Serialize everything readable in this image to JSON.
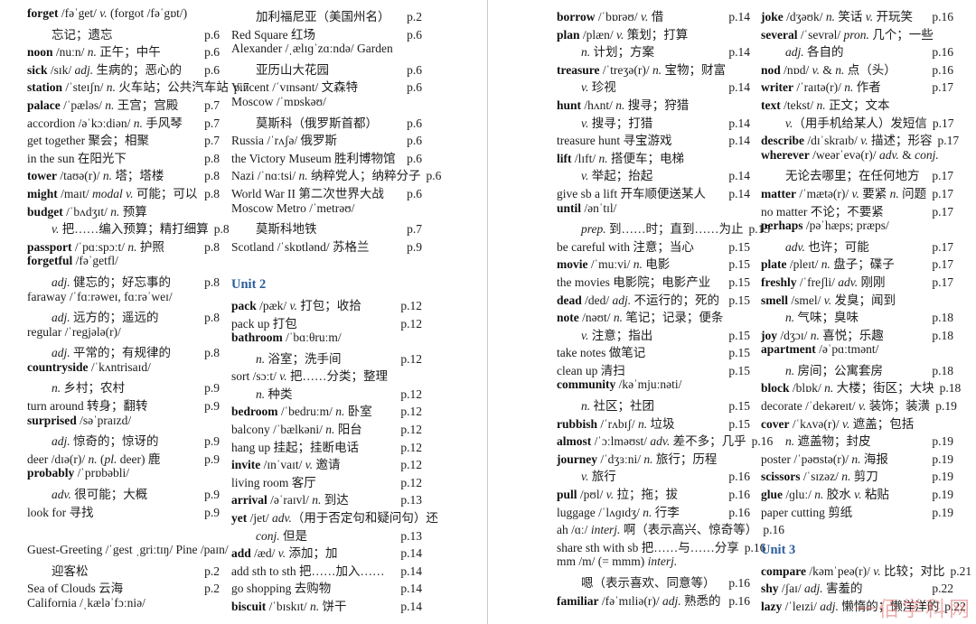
{
  "meta": {
    "bg_color": "#ffffff",
    "divider_color": "#c9c9c9",
    "unit_heading_color": "#2b5d9c",
    "text_color": "#1c1c1c",
    "watermark": {
      "text": "一佰学科网",
      "color": "#dd6e6e"
    }
  },
  "columns": [
    {
      "lines": [
        {
          "head": "forget",
          "text": "/fəˈget/ v. (forgot /fəˈgɒt/)"
        },
        {
          "text": "忘记；遗忘",
          "page": "p.6",
          "indent": true
        },
        {
          "head": "noon",
          "text": "/nuːn/ n. 正午；中午",
          "page": "p.6"
        },
        {
          "head": "sick",
          "text": "/sɪk/ adj. 生病的；恶心的",
          "page": "p.6"
        },
        {
          "head": "station",
          "text": "/ˈsteɪʃn/ n. 火车站；公共汽车站",
          "page": "p.7"
        },
        {
          "head": "palace",
          "text": "/ˈpæləs/ n. 王宫；宫殿",
          "page": "p.7"
        },
        {
          "text": "accordion /əˈkɔːdiən/ n. 手风琴",
          "page": "p.7"
        },
        {
          "text": "get together 聚会；相聚",
          "page": "p.7"
        },
        {
          "text": "in the sun 在阳光下",
          "page": "p.8"
        },
        {
          "head": "tower",
          "text": "/taʊə(r)/ n. 塔；塔楼",
          "page": "p.8"
        },
        {
          "head": "might",
          "text": "/maɪt/ modal v. 可能；可以",
          "page": "p.8"
        },
        {
          "head": "budget",
          "text": "/ˈbʌdʒɪt/ n. 预算"
        },
        {
          "text": "v. 把……编入预算；精打细算",
          "page": "p.8",
          "indent": true
        },
        {
          "head": "passport",
          "text": "/ˈpɑːspɔːt/ n. 护照",
          "page": "p.8"
        },
        {
          "head": "forgetful",
          "text": "/fəˈgetfl/"
        },
        {
          "text": "adj. 健忘的；好忘事的",
          "page": "p.8",
          "indent": true
        },
        {
          "text": "faraway /ˈfɑːrəweɪ, fɑːrəˈweɪ/"
        },
        {
          "text": "adj. 远方的；遥远的",
          "page": "p.8",
          "indent": true
        },
        {
          "text": "regular /ˈregjələ(r)/"
        },
        {
          "text": "adj. 平常的；有规律的",
          "page": "p.8",
          "indent": true
        },
        {
          "head": "countryside",
          "text": "/ˈkʌntrisaɪd/"
        },
        {
          "text": "n. 乡村；农村",
          "page": "p.9",
          "indent": true
        },
        {
          "text": "turn around 转身；翻转",
          "page": "p.9"
        },
        {
          "head": "surprised",
          "text": "/səˈpraɪzd/"
        },
        {
          "text": "adj. 惊奇的；惊讶的",
          "page": "p.9",
          "indent": true
        },
        {
          "text": "deer /dɪə(r)/ n. (pl. deer) 鹿",
          "page": "p.9"
        },
        {
          "head": "probably",
          "text": "/ˈprɒbəbli/"
        },
        {
          "text": "adv. 很可能；大概",
          "page": "p.9",
          "indent": true
        },
        {
          "text": "look for 寻找",
          "page": "p.9"
        },
        {
          "type": "gap"
        },
        {
          "text": "Guest-Greeting /ˈgest ˌgriːtɪŋ/ Pine /paɪn/"
        },
        {
          "text": "迎客松",
          "page": "p.2",
          "indent": true
        },
        {
          "text": "Sea of Clouds 云海",
          "page": "p.2"
        },
        {
          "text": "California /ˌkæləˈfɔːniə/"
        }
      ]
    },
    {
      "lines": [
        {
          "text": "加利福尼亚（美国州名）",
          "page": "p.2",
          "indent": true
        },
        {
          "text": "Red Square 红场",
          "page": "p.6"
        },
        {
          "text": "Alexander /ˌælɪɡˈzɑːndə/ Garden"
        },
        {
          "text": "亚历山大花园",
          "page": "p.6",
          "indent": true
        },
        {
          "text": "Vincent /ˈvɪnsənt/ 文森特",
          "page": "p.6"
        },
        {
          "text": "Moscow /ˈmɒskəʊ/"
        },
        {
          "text": "莫斯科（俄罗斯首都）",
          "page": "p.6",
          "indent": true
        },
        {
          "text": "Russia /ˈrʌʃə/ 俄罗斯",
          "page": "p.6"
        },
        {
          "text": "the Victory Museum 胜利博物馆",
          "page": "p.6"
        },
        {
          "text": "Nazi /ˈnɑːtsi/ n. 纳粹党人；纳粹分子",
          "page": "p.6"
        },
        {
          "text": "World War II 第二次世界大战",
          "page": "p.6"
        },
        {
          "text": "Moscow Metro /ˈmetrəʊ/"
        },
        {
          "text": "莫斯科地铁",
          "page": "p.7",
          "indent": true
        },
        {
          "text": "Scotland /ˈskɒtlənd/ 苏格兰",
          "page": "p.9"
        },
        {
          "type": "gap"
        },
        {
          "type": "unit",
          "text": "Unit 2"
        },
        {
          "head": "pack",
          "text": "/pæk/ v. 打包；收拾",
          "page": "p.12"
        },
        {
          "text": "pack up 打包",
          "page": "p.12"
        },
        {
          "head": "bathroom",
          "text": "/ˈbɑːθruːm/"
        },
        {
          "text": "n. 浴室；洗手间",
          "page": "p.12",
          "indent": true
        },
        {
          "text": "sort /sɔːt/ v. 把……分类；整理"
        },
        {
          "text": "n. 种类",
          "page": "p.12",
          "indent": true
        },
        {
          "head": "bedroom",
          "text": "/ˈbedruːm/ n. 卧室",
          "page": "p.12"
        },
        {
          "text": "balcony /ˈbælkəni/ n. 阳台",
          "page": "p.12"
        },
        {
          "text": "hang up 挂起；挂断电话",
          "page": "p.12"
        },
        {
          "head": "invite",
          "text": "/ɪnˈvaɪt/ v. 邀请",
          "page": "p.12"
        },
        {
          "text": "living room 客厅",
          "page": "p.12"
        },
        {
          "head": "arrival",
          "text": "/əˈraɪvl/ n. 到达",
          "page": "p.13"
        },
        {
          "head": "yet",
          "text": "/jet/ adv.（用于否定句和疑问句）还"
        },
        {
          "text": "conj. 但是",
          "page": "p.13",
          "indent": true
        },
        {
          "head": "add",
          "text": "/æd/ v. 添加；加",
          "page": "p.14"
        },
        {
          "text": "add sth to sth 把……加入……",
          "page": "p.14"
        },
        {
          "text": "go shopping 去购物",
          "page": "p.14"
        },
        {
          "head": "biscuit",
          "text": "/ˈbɪskɪt/ n. 饼干",
          "page": "p.14"
        }
      ]
    },
    {
      "lines": [
        {
          "head": "borrow",
          "text": "/ˈbɒrəʊ/ v. 借",
          "page": "p.14"
        },
        {
          "head": "plan",
          "text": "/plæn/ v. 策划；打算"
        },
        {
          "text": "n. 计划；方案",
          "page": "p.14",
          "indent": true
        },
        {
          "head": "treasure",
          "text": "/ˈtreʒə(r)/ n. 宝物；财富"
        },
        {
          "text": "v. 珍视",
          "page": "p.14",
          "indent": true
        },
        {
          "head": "hunt",
          "text": "/hʌnt/ n. 搜寻；狩猎"
        },
        {
          "text": "v. 搜寻；打猎",
          "page": "p.14",
          "indent": true
        },
        {
          "text": "treasure hunt 寻宝游戏",
          "page": "p.14"
        },
        {
          "head": "lift",
          "text": "/lɪft/ n. 搭便车；电梯"
        },
        {
          "text": "v. 举起；抬起",
          "page": "p.14",
          "indent": true
        },
        {
          "text": "give sb a lift 开车顺便送某人",
          "page": "p.14"
        },
        {
          "head": "until",
          "text": "/ənˈtɪl/"
        },
        {
          "text": "prep. 到……时；直到……为止",
          "page": "p.15",
          "indent": true
        },
        {
          "text": "be careful with 注意；当心",
          "page": "p.15"
        },
        {
          "head": "movie",
          "text": "/ˈmuːvi/ n. 电影",
          "page": "p.15"
        },
        {
          "text": "the movies 电影院；电影产业",
          "page": "p.15"
        },
        {
          "head": "dead",
          "text": "/ded/ adj. 不运行的；死的",
          "page": "p.15"
        },
        {
          "head": "note",
          "text": "/nəʊt/ n. 笔记；记录；便条"
        },
        {
          "text": "v. 注意；指出",
          "page": "p.15",
          "indent": true
        },
        {
          "text": "take notes 做笔记",
          "page": "p.15"
        },
        {
          "text": "clean up 清扫",
          "page": "p.15"
        },
        {
          "head": "community",
          "text": "/kəˈmjuːnəti/"
        },
        {
          "text": "n. 社区；社团",
          "page": "p.15",
          "indent": true
        },
        {
          "head": "rubbish",
          "text": "/ˈrʌbɪʃ/ n. 垃圾",
          "page": "p.15"
        },
        {
          "head": "almost",
          "text": "/ˈɔːlməʊst/ adv. 差不多；几乎",
          "page": "p.16"
        },
        {
          "head": "journey",
          "text": "/ˈdʒɜːni/ n. 旅行；历程"
        },
        {
          "text": "v. 旅行",
          "page": "p.16",
          "indent": true
        },
        {
          "head": "pull",
          "text": "/pʊl/ v. 拉；拖；拔",
          "page": "p.16"
        },
        {
          "text": "luggage /ˈlʌɡɪdʒ/ n. 行李",
          "page": "p.16"
        },
        {
          "text": "ah /ɑː/ interj. 啊（表示高兴、惊奇等）",
          "page": "p.16"
        },
        {
          "text": "share sth with sb 把……与……分享",
          "page": "p.16"
        },
        {
          "text": "mm /m/ (= mmm) interj."
        },
        {
          "text": "嗯（表示喜欢、同意等）",
          "page": "p.16",
          "indent": true
        },
        {
          "head": "familiar",
          "text": "/fəˈmɪliə(r)/ adj. 熟悉的",
          "page": "p.16"
        }
      ]
    },
    {
      "lines": [
        {
          "head": "joke",
          "text": "/dʒəʊk/ n. 笑话 v. 开玩笑",
          "page": "p.16"
        },
        {
          "head": "several",
          "text": "/ˈsevrəl/ pron. 几个；一些"
        },
        {
          "text": "adj. 各自的",
          "page": "p.16",
          "indent": true
        },
        {
          "head": "nod",
          "text": "/nɒd/ v. & n. 点（头）",
          "page": "p.16"
        },
        {
          "head": "writer",
          "text": "/ˈraɪtə(r)/ n. 作者",
          "page": "p.17"
        },
        {
          "head": "text",
          "text": "/tekst/ n. 正文；文本"
        },
        {
          "text": "v.（用手机给某人）发短信",
          "page": "p.17",
          "indent": true
        },
        {
          "head": "describe",
          "text": "/dɪˈskraɪb/ v. 描述；形容",
          "page": "p.17"
        },
        {
          "head": "wherever",
          "text": "/weərˈevə(r)/ adv. & conj."
        },
        {
          "text": "无论去哪里；在任何地方",
          "page": "p.17",
          "indent": true
        },
        {
          "head": "matter",
          "text": "/ˈmætə(r)/ v. 要紧 n. 问题",
          "page": "p.17"
        },
        {
          "text": "no matter 不论；不要紧",
          "page": "p.17"
        },
        {
          "head": "perhaps",
          "text": "/pəˈhæps; præps/"
        },
        {
          "text": "adv. 也许；可能",
          "page": "p.17",
          "indent": true
        },
        {
          "head": "plate",
          "text": "/pleɪt/ n. 盘子；碟子",
          "page": "p.17"
        },
        {
          "head": "freshly",
          "text": "/ˈfreʃli/ adv. 刚刚",
          "page": "p.17"
        },
        {
          "head": "smell",
          "text": "/smel/ v. 发臭；闻到"
        },
        {
          "text": "n. 气味；臭味",
          "page": "p.18",
          "indent": true
        },
        {
          "head": "joy",
          "text": "/dʒɔɪ/ n. 喜悦；乐趣",
          "page": "p.18"
        },
        {
          "head": "apartment",
          "text": "/əˈpɑːtmənt/"
        },
        {
          "text": "n. 房间；公寓套房",
          "page": "p.18",
          "indent": true
        },
        {
          "head": "block",
          "text": "/blɒk/ n. 大楼；街区；大块",
          "page": "p.18"
        },
        {
          "text": "decorate /ˈdekəreɪt/ v. 装饰；装潢",
          "page": "p.19"
        },
        {
          "head": "cover",
          "text": "/ˈkʌvə(r)/ v. 遮盖；包括"
        },
        {
          "text": "n. 遮盖物；封皮",
          "page": "p.19",
          "indent": true
        },
        {
          "text": "poster /ˈpəʊstə(r)/ n. 海报",
          "page": "p.19"
        },
        {
          "head": "scissors",
          "text": "/ˈsɪzəz/ n. 剪刀",
          "page": "p.19"
        },
        {
          "head": "glue",
          "text": "/ɡluː/ n. 胶水 v. 粘贴",
          "page": "p.19"
        },
        {
          "text": "paper cutting 剪纸",
          "page": "p.19"
        },
        {
          "type": "gap"
        },
        {
          "type": "unit",
          "text": "Unit 3"
        },
        {
          "head": "compare",
          "text": "/kəmˈpeə(r)/ v. 比较；对比",
          "page": "p.21"
        },
        {
          "head": "shy",
          "text": "/ʃaɪ/ adj. 害羞的",
          "page": "p.22"
        },
        {
          "head": "lazy",
          "text": "/ˈleɪzi/ adj. 懒惰的；懒洋洋的",
          "page": "p.22"
        }
      ]
    }
  ]
}
